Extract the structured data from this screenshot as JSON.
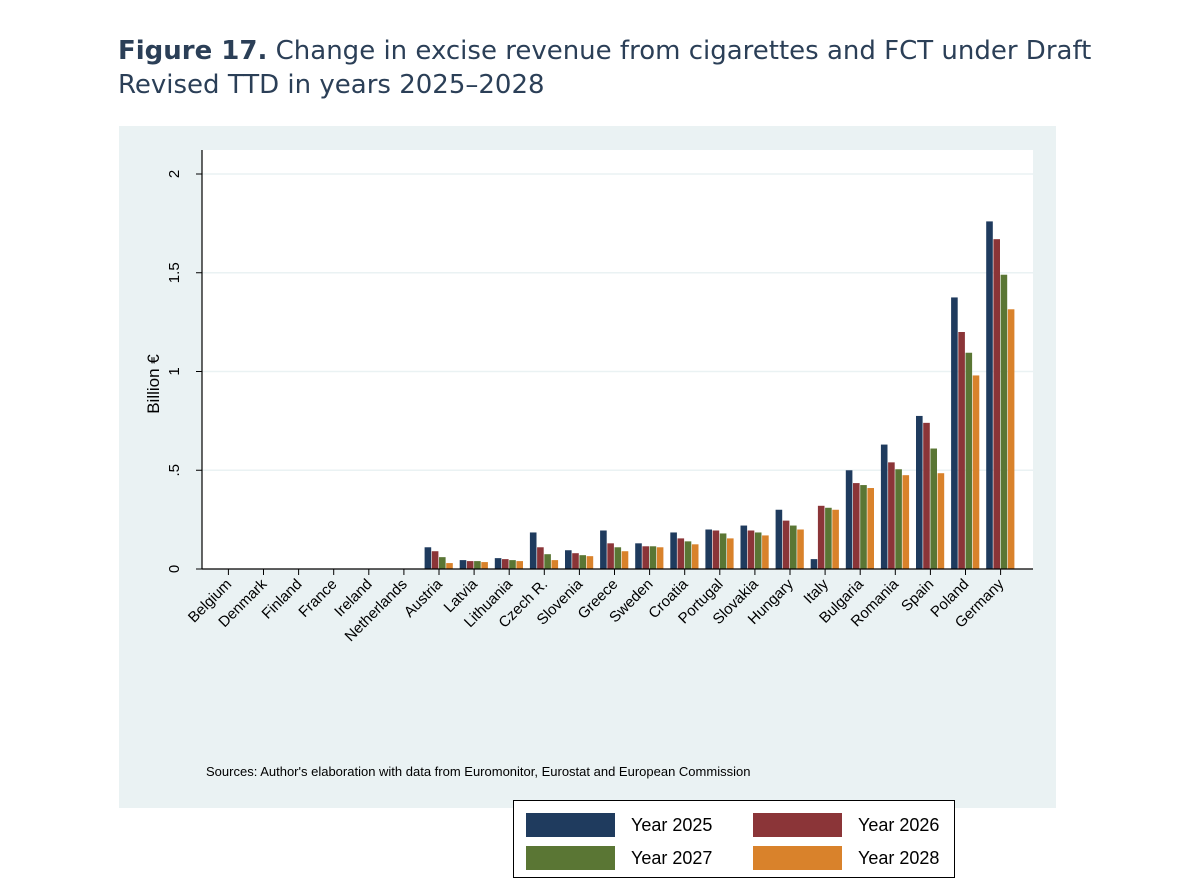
{
  "figure": {
    "number": "Figure 17.",
    "title": "Change in excise revenue from cigarettes and FCT under Draft Revised TTD in years 2025–2028"
  },
  "source": "Sources: Author's elaboration with data from Euromonitor, Eurostat and European Commission",
  "colors": {
    "panel_background": "#eaf2f3",
    "plot_background": "#ffffff",
    "gridline": "#eaf2f3",
    "year_2025": "#1f3b5e",
    "year_2026": "#8b3538",
    "year_2027": "#5a7634",
    "year_2028": "#d9822b"
  },
  "chart_data": {
    "type": "bar",
    "title": "",
    "xlabel": "",
    "ylabel": "Billion €",
    "ylim": [
      0,
      2.2
    ],
    "yticks": [
      0,
      0.5,
      1,
      1.5,
      2
    ],
    "ytick_labels": [
      "0",
      ".5",
      "1",
      "1.5",
      "2"
    ],
    "grid": true,
    "legend_position": "bottom",
    "categories": [
      "Belgium",
      "Denmark",
      "Finland",
      "France",
      "Ireland",
      "Netherlands",
      "Austria",
      "Latvia",
      "Lithuania",
      "Czech R.",
      "Slovenia",
      "Greece",
      "Sweden",
      "Croatia",
      "Portugal",
      "Slovakia",
      "Hungary",
      "Italy",
      "Bulgaria",
      "Romania",
      "Spain",
      "Poland",
      "Germany"
    ],
    "series": [
      {
        "name": "Year 2025",
        "color": "#1f3b5e",
        "values": [
          0,
          0,
          0,
          0,
          0,
          0,
          0.11,
          0.045,
          0.055,
          0.185,
          0.095,
          0.195,
          0.13,
          0.185,
          0.2,
          0.22,
          0.3,
          0.05,
          0.5,
          0.63,
          0.775,
          1.375,
          1.76
        ]
      },
      {
        "name": "Year 2026",
        "color": "#8b3538",
        "values": [
          0,
          0,
          0,
          0,
          0,
          0,
          0.09,
          0.04,
          0.05,
          0.11,
          0.08,
          0.13,
          0.115,
          0.155,
          0.195,
          0.195,
          0.245,
          0.32,
          0.435,
          0.54,
          0.74,
          1.2,
          1.67
        ]
      },
      {
        "name": "Year 2027",
        "color": "#5a7634",
        "values": [
          0,
          0,
          0,
          0,
          0,
          0,
          0.06,
          0.04,
          0.045,
          0.075,
          0.07,
          0.11,
          0.115,
          0.14,
          0.18,
          0.185,
          0.22,
          0.31,
          0.425,
          0.505,
          0.61,
          1.095,
          1.49
        ]
      },
      {
        "name": "Year 2028",
        "color": "#d9822b",
        "values": [
          0,
          0,
          0,
          0,
          0,
          0,
          0.03,
          0.035,
          0.04,
          0.045,
          0.065,
          0.09,
          0.11,
          0.125,
          0.155,
          0.17,
          0.2,
          0.3,
          0.41,
          0.475,
          0.485,
          0.98,
          1.315
        ]
      }
    ]
  }
}
